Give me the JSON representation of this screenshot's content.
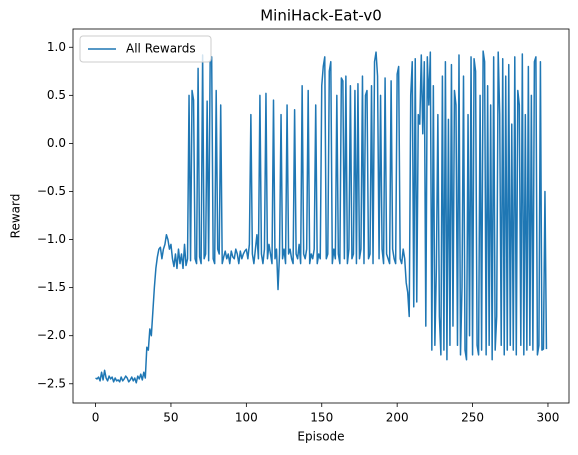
{
  "chart_data": {
    "type": "line",
    "title": "MiniHack-Eat-v0",
    "x_label": "Episode",
    "y_label": "Reward",
    "legend": "upper left",
    "x": [
      0,
      1,
      2,
      3,
      4,
      5,
      6,
      7,
      8,
      9,
      10,
      11,
      12,
      13,
      14,
      15,
      16,
      17,
      18,
      19,
      20,
      21,
      22,
      23,
      24,
      25,
      26,
      27,
      28,
      29,
      30,
      31,
      32,
      33,
      34,
      35,
      36,
      37,
      38,
      39,
      40,
      41,
      42,
      43,
      44,
      45,
      46,
      47,
      48,
      49,
      50,
      51,
      52,
      53,
      54,
      55,
      56,
      57,
      58,
      59,
      60,
      61,
      62,
      63,
      64,
      65,
      66,
      67,
      68,
      69,
      70,
      71,
      72,
      73,
      74,
      75,
      76,
      77,
      78,
      79,
      80,
      81,
      82,
      83,
      84,
      85,
      86,
      87,
      88,
      89,
      90,
      91,
      92,
      93,
      94,
      95,
      96,
      97,
      98,
      99,
      100,
      101,
      102,
      103,
      104,
      105,
      106,
      107,
      108,
      109,
      110,
      111,
      112,
      113,
      114,
      115,
      116,
      117,
      118,
      119,
      120,
      121,
      122,
      123,
      124,
      125,
      126,
      127,
      128,
      129,
      130,
      131,
      132,
      133,
      134,
      135,
      136,
      137,
      138,
      139,
      140,
      141,
      142,
      143,
      144,
      145,
      146,
      147,
      148,
      149,
      150,
      151,
      152,
      153,
      154,
      155,
      156,
      157,
      158,
      159,
      160,
      161,
      162,
      163,
      164,
      165,
      166,
      167,
      168,
      169,
      170,
      171,
      172,
      173,
      174,
      175,
      176,
      177,
      178,
      179,
      180,
      181,
      182,
      183,
      184,
      185,
      186,
      187,
      188,
      189,
      190,
      191,
      192,
      193,
      194,
      195,
      196,
      197,
      198,
      199,
      200,
      201,
      202,
      203,
      204,
      205,
      206,
      207,
      208,
      209,
      210,
      211,
      212,
      213,
      214,
      215,
      216,
      217,
      218,
      219,
      220,
      221,
      222,
      223,
      224,
      225,
      226,
      227,
      228,
      229,
      230,
      231,
      232,
      233,
      234,
      235,
      236,
      237,
      238,
      239,
      240,
      241,
      242,
      243,
      244,
      245,
      246,
      247,
      248,
      249,
      250,
      251,
      252,
      253,
      254,
      255,
      256,
      257,
      258,
      259,
      260,
      261,
      262,
      263,
      264,
      265,
      266,
      267,
      268,
      269,
      270,
      271,
      272,
      273,
      274,
      275,
      276,
      277,
      278,
      279,
      280,
      281,
      282,
      283,
      284,
      285,
      286,
      287,
      288,
      289,
      290,
      291,
      292,
      293,
      294,
      295,
      296,
      297,
      298,
      299
    ],
    "series": [
      {
        "name": "All Rewards",
        "color": "#1f77b4",
        "values": [
          -2.44,
          -2.45,
          -2.43,
          -2.47,
          -2.38,
          -2.46,
          -2.36,
          -2.44,
          -2.47,
          -2.42,
          -2.45,
          -2.43,
          -2.48,
          -2.44,
          -2.47,
          -2.46,
          -2.48,
          -2.43,
          -2.47,
          -2.45,
          -2.42,
          -2.44,
          -2.48,
          -2.46,
          -2.43,
          -2.47,
          -2.44,
          -2.49,
          -2.42,
          -2.45,
          -2.4,
          -2.46,
          -2.38,
          -2.44,
          -2.12,
          -2.15,
          -1.93,
          -2.0,
          -1.75,
          -1.5,
          -1.3,
          -1.18,
          -1.1,
          -1.08,
          -1.2,
          -1.1,
          -1.05,
          -0.95,
          -1.0,
          -1.1,
          -1.05,
          -1.2,
          -1.28,
          -1.15,
          -1.3,
          -1.1,
          -1.25,
          -1.15,
          -1.3,
          -1.05,
          -1.27,
          -1.2,
          0.5,
          -1.22,
          0.55,
          0.45,
          -1.2,
          -1.25,
          0.78,
          -1.18,
          -1.25,
          0.92,
          -1.2,
          -1.15,
          0.44,
          -1.22,
          0.85,
          0.9,
          -1.2,
          -1.25,
          0.55,
          -1.1,
          -1.15,
          0.4,
          -1.25,
          -1.18,
          -1.12,
          -1.2,
          -1.15,
          -1.25,
          -1.12,
          -1.18,
          -1.2,
          -1.1,
          -1.15,
          -1.25,
          -1.12,
          -1.2,
          -1.15,
          -1.12,
          -1.1,
          -1.2,
          -1.05,
          0.3,
          -1.15,
          -1.25,
          -1.1,
          -0.95,
          -1.2,
          0.5,
          -1.15,
          -1.25,
          -1.1,
          0.52,
          -1.2,
          -1.05,
          -1.15,
          -1.25,
          0.45,
          -1.2,
          -1.1,
          -1.52,
          -1.15,
          0.3,
          -1.2,
          -1.1,
          -1.25,
          0.4,
          -1.15,
          -1.1,
          -1.2,
          -1.25,
          0.35,
          -1.15,
          -1.2,
          -1.05,
          -1.25,
          0.6,
          -1.15,
          -1.2,
          -1.1,
          0.55,
          -1.25,
          -1.15,
          -1.2,
          -1.1,
          0.4,
          -1.25,
          -1.15,
          -1.2,
          0.6,
          0.8,
          0.9,
          -1.2,
          -1.15,
          0.75,
          0.85,
          -1.25,
          -1.1,
          -1.2,
          0.5,
          -1.15,
          -1.25,
          0.68,
          0.65,
          -1.2,
          0.7,
          -1.25,
          -1.1,
          0.6,
          -1.2,
          -1.15,
          0.55,
          -1.25,
          0.62,
          -1.2,
          -1.1,
          0.7,
          -1.25,
          0.5,
          0.55,
          -1.2,
          -1.15,
          0.6,
          -1.25,
          0.85,
          0.95,
          0.7,
          -1.2,
          0.5,
          -1.1,
          -1.25,
          0.68,
          -1.15,
          -1.2,
          -1.25,
          0.65,
          -1.1,
          -1.2,
          -1.25,
          0.72,
          0.8,
          -1.2,
          -1.25,
          -1.1,
          -1.2,
          -1.45,
          -1.55,
          -1.8,
          0.5,
          0.85,
          -1.7,
          0.88,
          -1.65,
          0.3,
          0.2,
          0.92,
          0.1,
          0.85,
          -1.9,
          0.9,
          0.4,
          0.95,
          -2.15,
          0.6,
          -2.1,
          -1.3,
          0.3,
          -1.8,
          -2.2,
          0.7,
          -2.15,
          0.85,
          -2.25,
          0.25,
          -2.1,
          0.82,
          -1.9,
          0.55,
          0.4,
          -2.1,
          0.92,
          -2.2,
          -1.5,
          0.7,
          -2.15,
          -2.25,
          0.3,
          -2.0,
          0.9,
          -2.2,
          0.88,
          0.75,
          -2.1,
          -2.2,
          0.5,
          -2.15,
          0.96,
          0.85,
          -2.2,
          0.6,
          -2.1,
          0.4,
          -2.25,
          0.9,
          -2.15,
          -1.8,
          0.95,
          0.3,
          -2.1,
          0.88,
          -2.2,
          0.7,
          -2.15,
          0.82,
          -2.1,
          0.2,
          -2.15,
          0.9,
          -2.2,
          0.55,
          0.4,
          -2.1,
          0.93,
          -2.2,
          0.3,
          -2.15,
          0.8,
          -2.1,
          0.5,
          -2.15,
          0.85,
          0.9,
          -2.2,
          -2.1,
          0.85,
          -2.15,
          -2.14,
          -0.5,
          -2.14
        ]
      }
    ],
    "xlim": [
      -14.95,
      313.95
    ],
    "xticks": [
      0,
      50,
      100,
      150,
      200,
      250,
      300
    ],
    "ylim": [
      -2.7,
      1.19
    ],
    "yticks": [
      {
        "value": -2.5,
        "label": "−2.5"
      },
      {
        "value": -2.0,
        "label": "−2.0"
      },
      {
        "value": -1.5,
        "label": "−1.5"
      },
      {
        "value": -1.0,
        "label": "−1.0"
      },
      {
        "value": -0.5,
        "label": "−0.5"
      },
      {
        "value": 0.0,
        "label": "0.0"
      },
      0.5,
      {
        "value": 1.0,
        "label": "1.0"
      }
    ],
    "grid": false
  }
}
